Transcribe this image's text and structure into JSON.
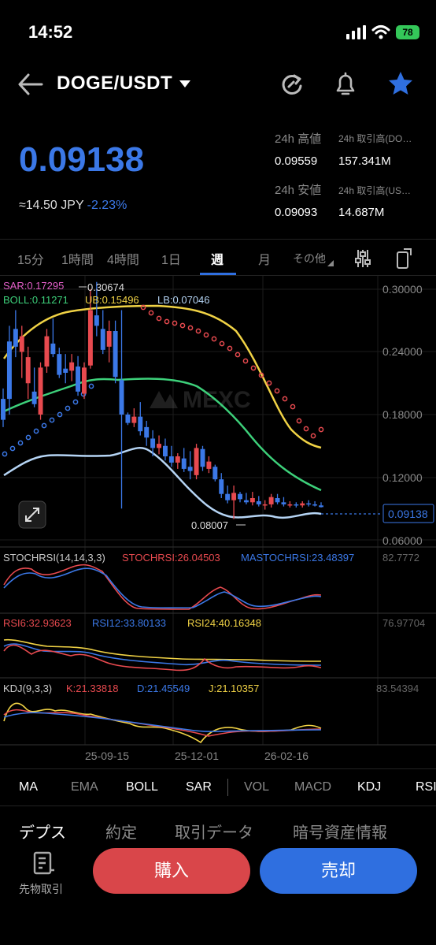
{
  "status": {
    "time": "14:52",
    "battery": "78"
  },
  "header": {
    "pair": "DOGE/USDT"
  },
  "ticker": {
    "last": "0.09138",
    "jpy": "≈14.50 JPY",
    "change": "-2.23%",
    "high_label": "24h 高値",
    "high_value": "0.09559",
    "low_label": "24h 安値",
    "low_value": "0.09093",
    "vol_base_label": "24h 取引高(DO…",
    "vol_base_value": "157.341M",
    "vol_quote_label": "24h 取引高(US…",
    "vol_quote_value": "14.687M"
  },
  "timeframes": [
    "15分",
    "1時間",
    "4時間",
    "1日",
    "週",
    "月",
    "その他"
  ],
  "active_timeframe": "週",
  "main_chart": {
    "sar": "SAR:0.17295",
    "boll": "BOLL:0.11271",
    "ub": "UB:0.15496",
    "lb": "LB:0.07046",
    "high_marker": "0.30674",
    "low_marker": "0.08007",
    "last_price_tag": "0.09138",
    "watermark": "MEXC",
    "y_ticks": [
      "0.30000",
      "0.24000",
      "0.18000",
      "0.12000",
      "0.06000"
    ]
  },
  "stochrsi": {
    "label": "STOCHRSI(14,14,3,3)",
    "k": "STOCHRSI:26.04503",
    "d": "MASTOCHRSI:23.48397",
    "max": "82.7772"
  },
  "rsi": {
    "rsi6": "RSI6:32.93623",
    "rsi12": "RSI12:33.80133",
    "rsi24": "RSI24:40.16348",
    "max": "76.97704"
  },
  "kdj": {
    "label": "KDJ(9,3,3)",
    "k": "K:21.33818",
    "d": "D:21.45549",
    "j": "J:21.10357",
    "max": "83.54394"
  },
  "x_ticks": [
    "25-09-15",
    "25-12-01",
    "26-02-16"
  ],
  "indicator_tabs": [
    "MA",
    "EMA",
    "BOLL",
    "SAR",
    "VOL",
    "MACD",
    "KDJ",
    "RSI"
  ],
  "bottom_tabs": [
    "デプス",
    "約定",
    "取引データ",
    "暗号資産情報"
  ],
  "futures_label": "先物取引",
  "buy_label": "購入",
  "sell_label": "売却",
  "colors": {
    "up": "#e84a4f",
    "down": "#3b78e7",
    "boll": "#3dd07a",
    "ub": "#f0d245",
    "lb": "#b5d4f4",
    "sar": "#e84a4f"
  },
  "chart_data": {
    "type": "candlestick",
    "candles": [
      [
        0.195,
        0.205,
        0.168,
        0.175
      ],
      [
        0.25,
        0.265,
        0.18,
        0.195
      ],
      [
        0.262,
        0.28,
        0.235,
        0.245
      ],
      [
        0.24,
        0.265,
        0.215,
        0.255
      ],
      [
        0.21,
        0.245,
        0.195,
        0.235
      ],
      [
        0.202,
        0.225,
        0.187,
        0.19
      ],
      [
        0.18,
        0.23,
        0.175,
        0.225
      ],
      [
        0.226,
        0.262,
        0.22,
        0.255
      ],
      [
        0.248,
        0.272,
        0.235,
        0.238
      ],
      [
        0.238,
        0.244,
        0.215,
        0.218
      ],
      [
        0.224,
        0.238,
        0.21,
        0.22
      ],
      [
        0.222,
        0.238,
        0.212,
        0.23
      ],
      [
        0.226,
        0.236,
        0.198,
        0.202
      ],
      [
        0.2,
        0.23,
        0.195,
        0.225
      ],
      [
        0.227,
        0.3,
        0.224,
        0.28
      ],
      [
        0.275,
        0.307,
        0.255,
        0.265
      ],
      [
        0.262,
        0.28,
        0.238,
        0.242
      ],
      [
        0.245,
        0.27,
        0.23,
        0.26
      ],
      [
        0.26,
        0.27,
        0.21,
        0.216
      ],
      [
        0.213,
        0.28,
        0.09,
        0.18
      ],
      [
        0.18,
        0.182,
        0.17,
        0.172
      ],
      [
        0.172,
        0.186,
        0.168,
        0.178
      ],
      [
        0.178,
        0.192,
        0.16,
        0.164
      ],
      [
        0.168,
        0.174,
        0.15,
        0.158
      ],
      [
        0.157,
        0.165,
        0.14,
        0.148
      ],
      [
        0.148,
        0.16,
        0.142,
        0.152
      ],
      [
        0.15,
        0.157,
        0.136,
        0.14
      ],
      [
        0.14,
        0.15,
        0.13,
        0.134
      ],
      [
        0.134,
        0.143,
        0.128,
        0.14
      ],
      [
        0.138,
        0.148,
        0.125,
        0.128
      ],
      [
        0.13,
        0.145,
        0.118,
        0.126
      ],
      [
        0.122,
        0.152,
        0.118,
        0.148
      ],
      [
        0.147,
        0.15,
        0.126,
        0.13
      ],
      [
        0.128,
        0.14,
        0.124,
        0.135
      ],
      [
        0.13,
        0.132,
        0.116,
        0.118
      ],
      [
        0.118,
        0.124,
        0.1,
        0.104
      ],
      [
        0.104,
        0.112,
        0.095,
        0.098
      ],
      [
        0.098,
        0.112,
        0.08,
        0.105
      ],
      [
        0.104,
        0.106,
        0.096,
        0.099
      ],
      [
        0.098,
        0.105,
        0.094,
        0.096
      ],
      [
        0.096,
        0.106,
        0.093,
        0.1
      ],
      [
        0.097,
        0.102,
        0.092,
        0.094
      ],
      [
        0.093,
        0.098,
        0.089,
        0.094
      ],
      [
        0.094,
        0.104,
        0.091,
        0.101
      ],
      [
        0.1,
        0.104,
        0.094,
        0.096
      ],
      [
        0.096,
        0.101,
        0.092,
        0.094
      ],
      [
        0.093,
        0.097,
        0.091,
        0.094
      ],
      [
        0.094,
        0.096,
        0.091,
        0.093
      ],
      [
        0.093,
        0.097,
        0.091,
        0.095
      ],
      [
        0.095,
        0.098,
        0.092,
        0.094
      ],
      [
        0.094,
        0.097,
        0.092,
        0.093
      ],
      [
        0.093,
        0.096,
        0.091,
        0.0914
      ]
    ],
    "ylim": [
      0.06,
      0.3
    ]
  }
}
